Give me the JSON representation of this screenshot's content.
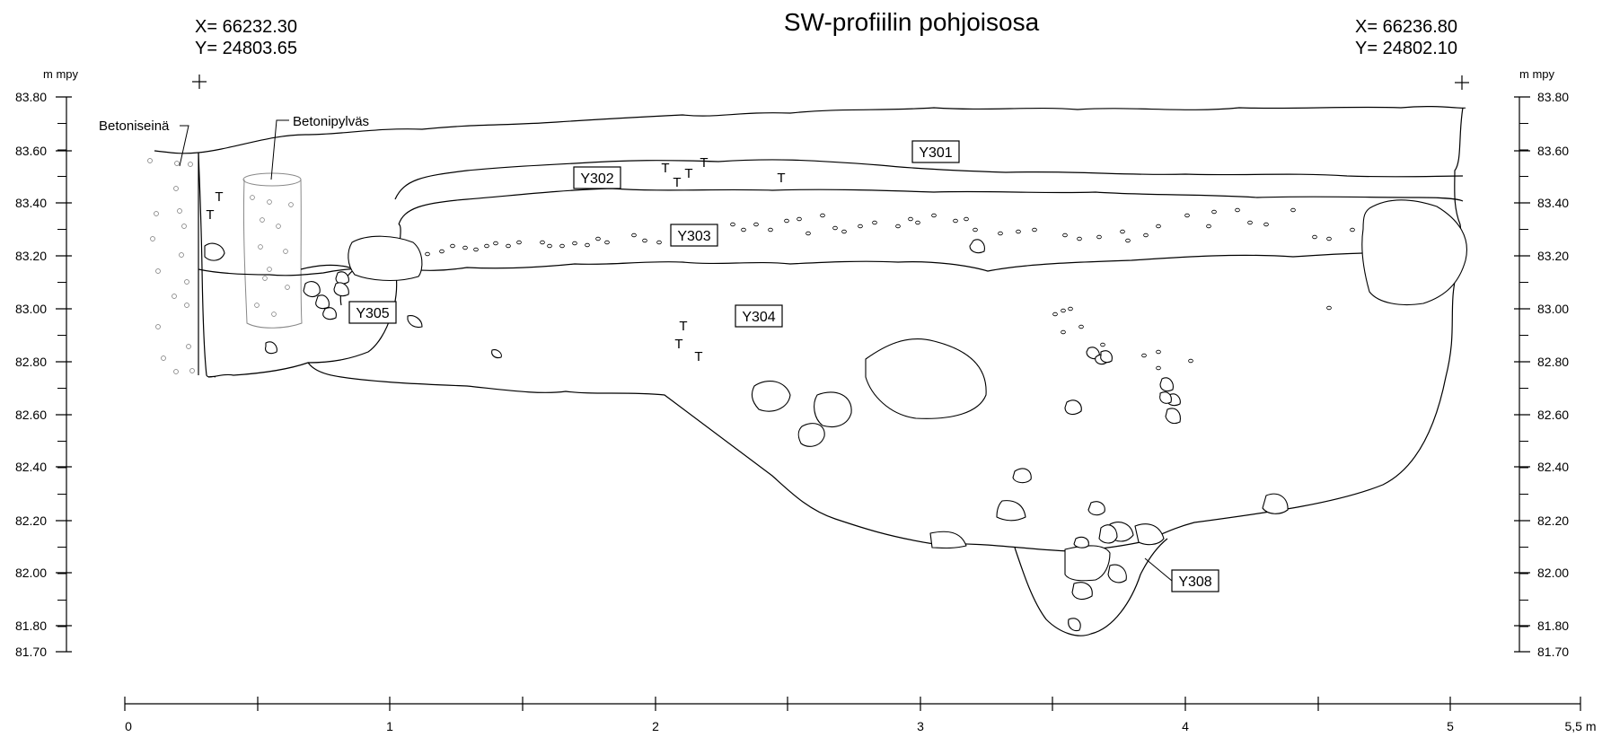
{
  "title": "SW-profiilin pohjoisosa",
  "coords_left": {
    "x": "X= 66232.30",
    "y": "Y= 24803.65"
  },
  "coords_right": {
    "x": "X= 66236.80",
    "y": "Y= 24802.10"
  },
  "elevation_unit": "m mpy",
  "elevation_ticks": [
    "83.80",
    "83.60",
    "83.40",
    "83.20",
    "83.00",
    "82.80",
    "82.60",
    "82.40",
    "82.20",
    "82.00",
    "81.80",
    "81.70"
  ],
  "distance_ticks": [
    "0",
    "1",
    "2",
    "3",
    "4",
    "5",
    "5,5 m"
  ],
  "annotations": {
    "concrete_wall": "Betoniseinä",
    "concrete_pillar": "Betonipylväs"
  },
  "layers": [
    "Y301",
    "Y302",
    "Y303",
    "Y304",
    "Y305",
    "Y308"
  ],
  "find_marker": "T",
  "colors": {
    "line": "#000000",
    "concrete": "#888888",
    "background": "#ffffff"
  }
}
